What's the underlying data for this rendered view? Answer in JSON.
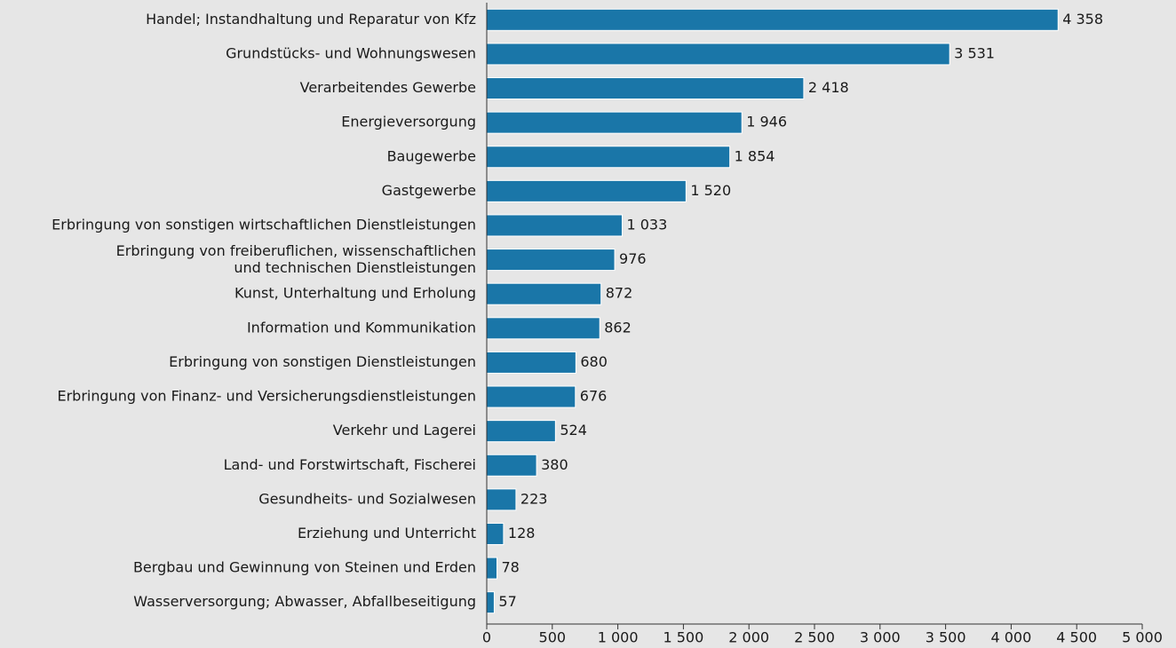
{
  "chart_data": {
    "type": "hbar",
    "categories": [
      "Handel; Instandhaltung und Reparatur von Kfz",
      "Grundstücks- und Wohnungswesen",
      "Verarbeitendes Gewerbe",
      "Energieversorgung",
      "Baugewerbe",
      "Gastgewerbe",
      "Erbringung von sonstigen wirtschaftlichen Dienstleistungen",
      "Erbringung von freiberuflichen, wissenschaftlichen\nund technischen Dienstleistungen",
      "Kunst, Unterhaltung und Erholung",
      "Information und Kommunikation",
      "Erbringung von sonstigen Dienstleistungen",
      "Erbringung von Finanz- und Versicherungsdienstleistungen",
      "Verkehr und Lagerei",
      "Land- und Forstwirtschaft, Fischerei",
      "Gesundheits- und Sozialwesen",
      "Erziehung und Unterricht",
      "Bergbau und Gewinnung von Steinen und Erden",
      "Wasserversorgung; Abwasser, Abfallbeseitigung"
    ],
    "values": [
      4358,
      3531,
      2418,
      1946,
      1854,
      1520,
      1033,
      976,
      872,
      862,
      680,
      676,
      524,
      380,
      223,
      128,
      78,
      57
    ],
    "value_labels": [
      "4 358",
      "3 531",
      "2 418",
      "1 946",
      "1 854",
      "1 520",
      "1 033",
      "976",
      "872",
      "862",
      "680",
      "676",
      "524",
      "380",
      "223",
      "128",
      "78",
      "57"
    ],
    "color": "#1a76a8",
    "xlim": [
      0,
      5000
    ],
    "xticks": [
      0,
      500,
      {
        "value": 1000,
        "label": "1 000"
      },
      {
        "value": 1500,
        "label": "1 500"
      },
      {
        "value": 2000,
        "label": "2 000"
      },
      {
        "value": 2500,
        "label": "2 500"
      },
      {
        "value": 3000,
        "label": "3 000"
      },
      {
        "value": 3500,
        "label": "3 500"
      },
      {
        "value": 4000,
        "label": "4 000"
      },
      {
        "value": 4500,
        "label": "4 500"
      },
      {
        "value": 5000,
        "label": "5 000"
      }
    ]
  }
}
